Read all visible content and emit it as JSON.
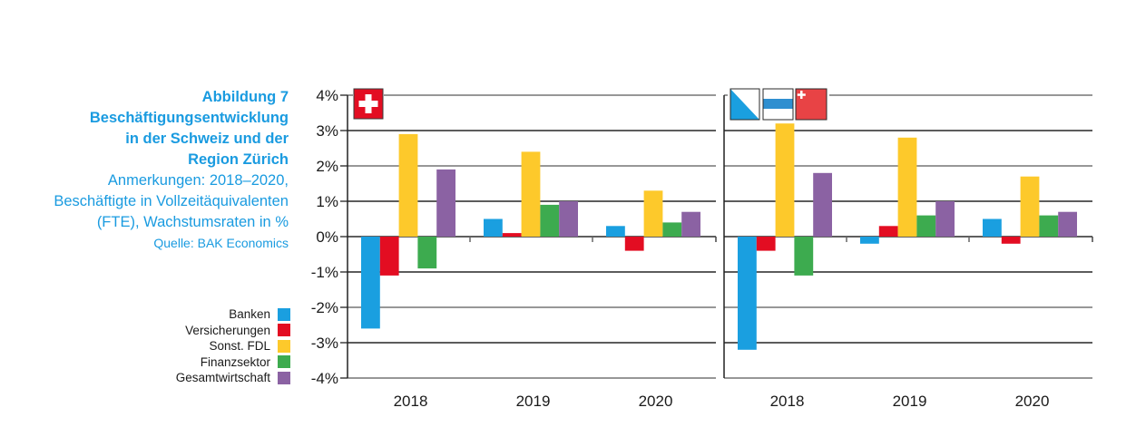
{
  "caption": {
    "figure": "Abbildung 7",
    "title_lines": [
      "Beschäftigungsentwicklung",
      "in der Schweiz und der",
      "Region Zürich"
    ],
    "note_lines": [
      "Anmerkungen: 2018–2020,",
      "Beschäftigte in Vollzeitäquivalenten",
      "(FTE), Wachstumsraten in %"
    ],
    "source": "Quelle: BAK Economics"
  },
  "legend": [
    {
      "label": "Banken",
      "color": "#1a9fe0"
    },
    {
      "label": "Versicherungen",
      "color": "#e30d22"
    },
    {
      "label": "Sonst. FDL",
      "color": "#fdc92b"
    },
    {
      "label": "Finanzsektor",
      "color": "#3dab4f"
    },
    {
      "label": "Gesamtwirtschaft",
      "color": "#8b62a3"
    }
  ],
  "chart_data": [
    {
      "type": "bar",
      "panel": "Schweiz",
      "icon": "swiss-flag-icon",
      "title": "",
      "xlabel": "",
      "ylabel": "",
      "categories": [
        "2018",
        "2019",
        "2020"
      ],
      "ylim": [
        -4,
        4
      ],
      "yticks": [
        "4%",
        "3%",
        "2%",
        "1%",
        "0%",
        "-1%",
        "-2%",
        "-3%",
        "-4%"
      ],
      "grid": true,
      "series": [
        {
          "name": "Banken",
          "values": [
            -2.6,
            0.5,
            0.3
          ]
        },
        {
          "name": "Versicherungen",
          "values": [
            -1.1,
            0.1,
            -0.4
          ]
        },
        {
          "name": "Sonst. FDL",
          "values": [
            2.9,
            2.4,
            1.3
          ]
        },
        {
          "name": "Finanzsektor",
          "values": [
            -0.9,
            0.9,
            0.4
          ]
        },
        {
          "name": "Gesamtwirtschaft",
          "values": [
            1.9,
            1.0,
            0.7
          ]
        }
      ]
    },
    {
      "type": "bar",
      "panel": "Region Zürich",
      "icon": "zurich-flags-icon",
      "title": "",
      "xlabel": "",
      "ylabel": "",
      "categories": [
        "2018",
        "2019",
        "2020"
      ],
      "ylim": [
        -4,
        4
      ],
      "grid": true,
      "series": [
        {
          "name": "Banken",
          "values": [
            -3.2,
            -0.2,
            0.5
          ]
        },
        {
          "name": "Versicherungen",
          "values": [
            -0.4,
            0.3,
            -0.2
          ]
        },
        {
          "name": "Sonst. FDL",
          "values": [
            3.2,
            2.8,
            1.7
          ]
        },
        {
          "name": "Finanzsektor",
          "values": [
            -1.1,
            0.6,
            0.6
          ]
        },
        {
          "name": "Gesamtwirtschaft",
          "values": [
            1.8,
            1.0,
            0.7
          ]
        }
      ]
    }
  ]
}
